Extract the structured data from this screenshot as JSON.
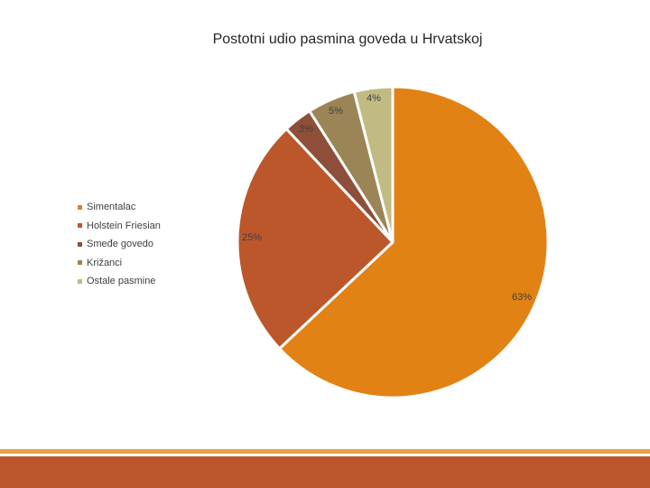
{
  "chart_data": {
    "type": "pie",
    "title": "Postotni udio pasmina goveda u Hrvatskoj",
    "categories": [
      "Simentalac",
      "Holstein Friesian",
      "Smeđe govedo",
      "Križanci",
      "Ostale pasmine"
    ],
    "values": [
      63,
      25,
      3,
      5,
      4
    ],
    "labels": [
      "63%",
      "25%",
      "3%",
      "5%",
      "4%"
    ],
    "colors": [
      "#e28215",
      "#bc572b",
      "#8d4f3a",
      "#9b8456",
      "#c2ba83"
    ],
    "legend_position": "left"
  },
  "footer": {
    "accent_color": "#e6a141",
    "bar_color": "#bc572b"
  }
}
